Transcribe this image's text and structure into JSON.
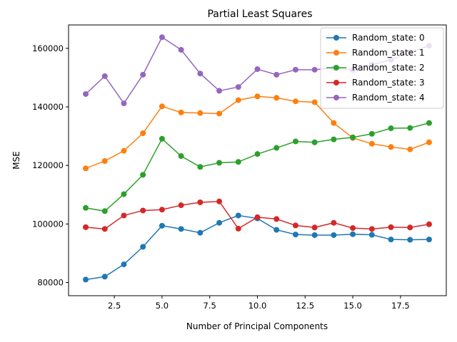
{
  "chart_data": {
    "type": "line",
    "title": "Partial Least Squares",
    "xlabel": "Number of Principal Components",
    "ylabel": "MSE",
    "xlim": [
      0.1,
      19.9
    ],
    "ylim": [
      75500,
      168000
    ],
    "x_ticks": [
      2.5,
      5.0,
      7.5,
      10.0,
      12.5,
      15.0,
      17.5
    ],
    "x_tick_labels": [
      "2.5",
      "5.0",
      "7.5",
      "10.0",
      "12.5",
      "15.0",
      "17.5"
    ],
    "y_ticks": [
      80000,
      100000,
      120000,
      140000,
      160000
    ],
    "y_tick_labels": [
      "80000",
      "100000",
      "120000",
      "140000",
      "160000"
    ],
    "grid": false,
    "legend_position": "top-right",
    "x": [
      1,
      2,
      3,
      4,
      5,
      6,
      7,
      8,
      9,
      10,
      11,
      12,
      13,
      14,
      15,
      16,
      17,
      18,
      19
    ],
    "series": [
      {
        "name": "Random_state: 0",
        "color": "#1f77b4",
        "values": [
          81000,
          82000,
          86200,
          92200,
          99400,
          98300,
          97000,
          100400,
          102900,
          101900,
          98000,
          96400,
          96200,
          96200,
          96500,
          96300,
          94700,
          94600,
          94700
        ]
      },
      {
        "name": "Random_state: 1",
        "color": "#ff7f0e",
        "values": [
          119000,
          121500,
          125000,
          131000,
          140200,
          138100,
          137900,
          137700,
          142300,
          143600,
          143100,
          141900,
          141600,
          134500,
          129400,
          127400,
          126300,
          125500,
          127900
        ]
      },
      {
        "name": "Random_state: 2",
        "color": "#2ca02c",
        "values": [
          105500,
          104400,
          110200,
          116800,
          129100,
          123200,
          119500,
          120900,
          121200,
          123900,
          126000,
          128200,
          127900,
          128900,
          129600,
          130800,
          132700,
          132800,
          134500
        ]
      },
      {
        "name": "Random_state: 3",
        "color": "#d62728",
        "values": [
          98900,
          98300,
          102900,
          104600,
          104900,
          106400,
          107400,
          107700,
          98400,
          102300,
          101700,
          99500,
          98800,
          100400,
          98600,
          98300,
          98900,
          98800,
          99900
        ]
      },
      {
        "name": "Random_state: 4",
        "color": "#9467bd",
        "values": [
          144400,
          150500,
          141200,
          151000,
          163800,
          159500,
          151400,
          145500,
          146800,
          152900,
          151000,
          152700,
          152700,
          153300,
          152600,
          154400,
          156100,
          158700,
          160900
        ]
      }
    ]
  }
}
